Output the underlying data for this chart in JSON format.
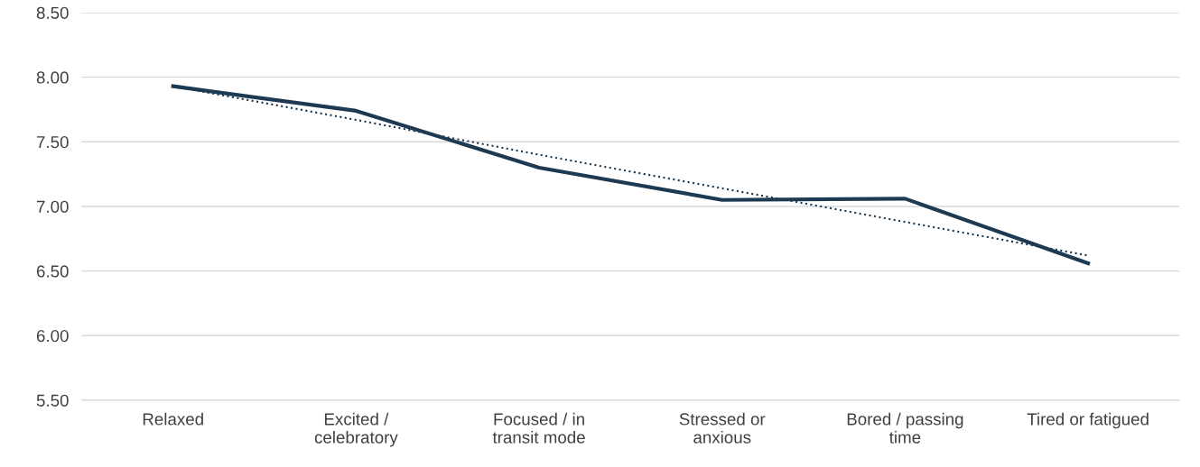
{
  "chart_data": {
    "type": "line",
    "categories": [
      "Relaxed",
      "Excited /\ncelebratory",
      "Focused / in\ntransit mode",
      "Stressed or\nanxious",
      "Bored / passing\ntime",
      "Tired or fatigued"
    ],
    "series": [
      {
        "color": "#1e3a52",
        "values": [
          7.93,
          7.74,
          7.3,
          7.05,
          7.06,
          6.56
        ],
        "line_style": "solid"
      },
      {
        "color": "#1e3a52",
        "values": [
          7.93,
          7.67,
          7.4,
          7.14,
          6.88,
          6.62
        ],
        "line_style": "dotted"
      }
    ],
    "ylim": [
      5.5,
      8.5
    ],
    "yticks": [
      {
        "value": 5.5,
        "label": "5.50"
      },
      {
        "value": 6.0,
        "label": "6.00"
      },
      {
        "value": 6.5,
        "label": "6.50"
      },
      {
        "value": 7.0,
        "label": "7.00"
      },
      {
        "value": 7.5,
        "label": "7.50"
      },
      {
        "value": 8.0,
        "label": "8.00"
      },
      {
        "value": 8.5,
        "label": "8.50"
      }
    ],
    "grid": "y"
  }
}
